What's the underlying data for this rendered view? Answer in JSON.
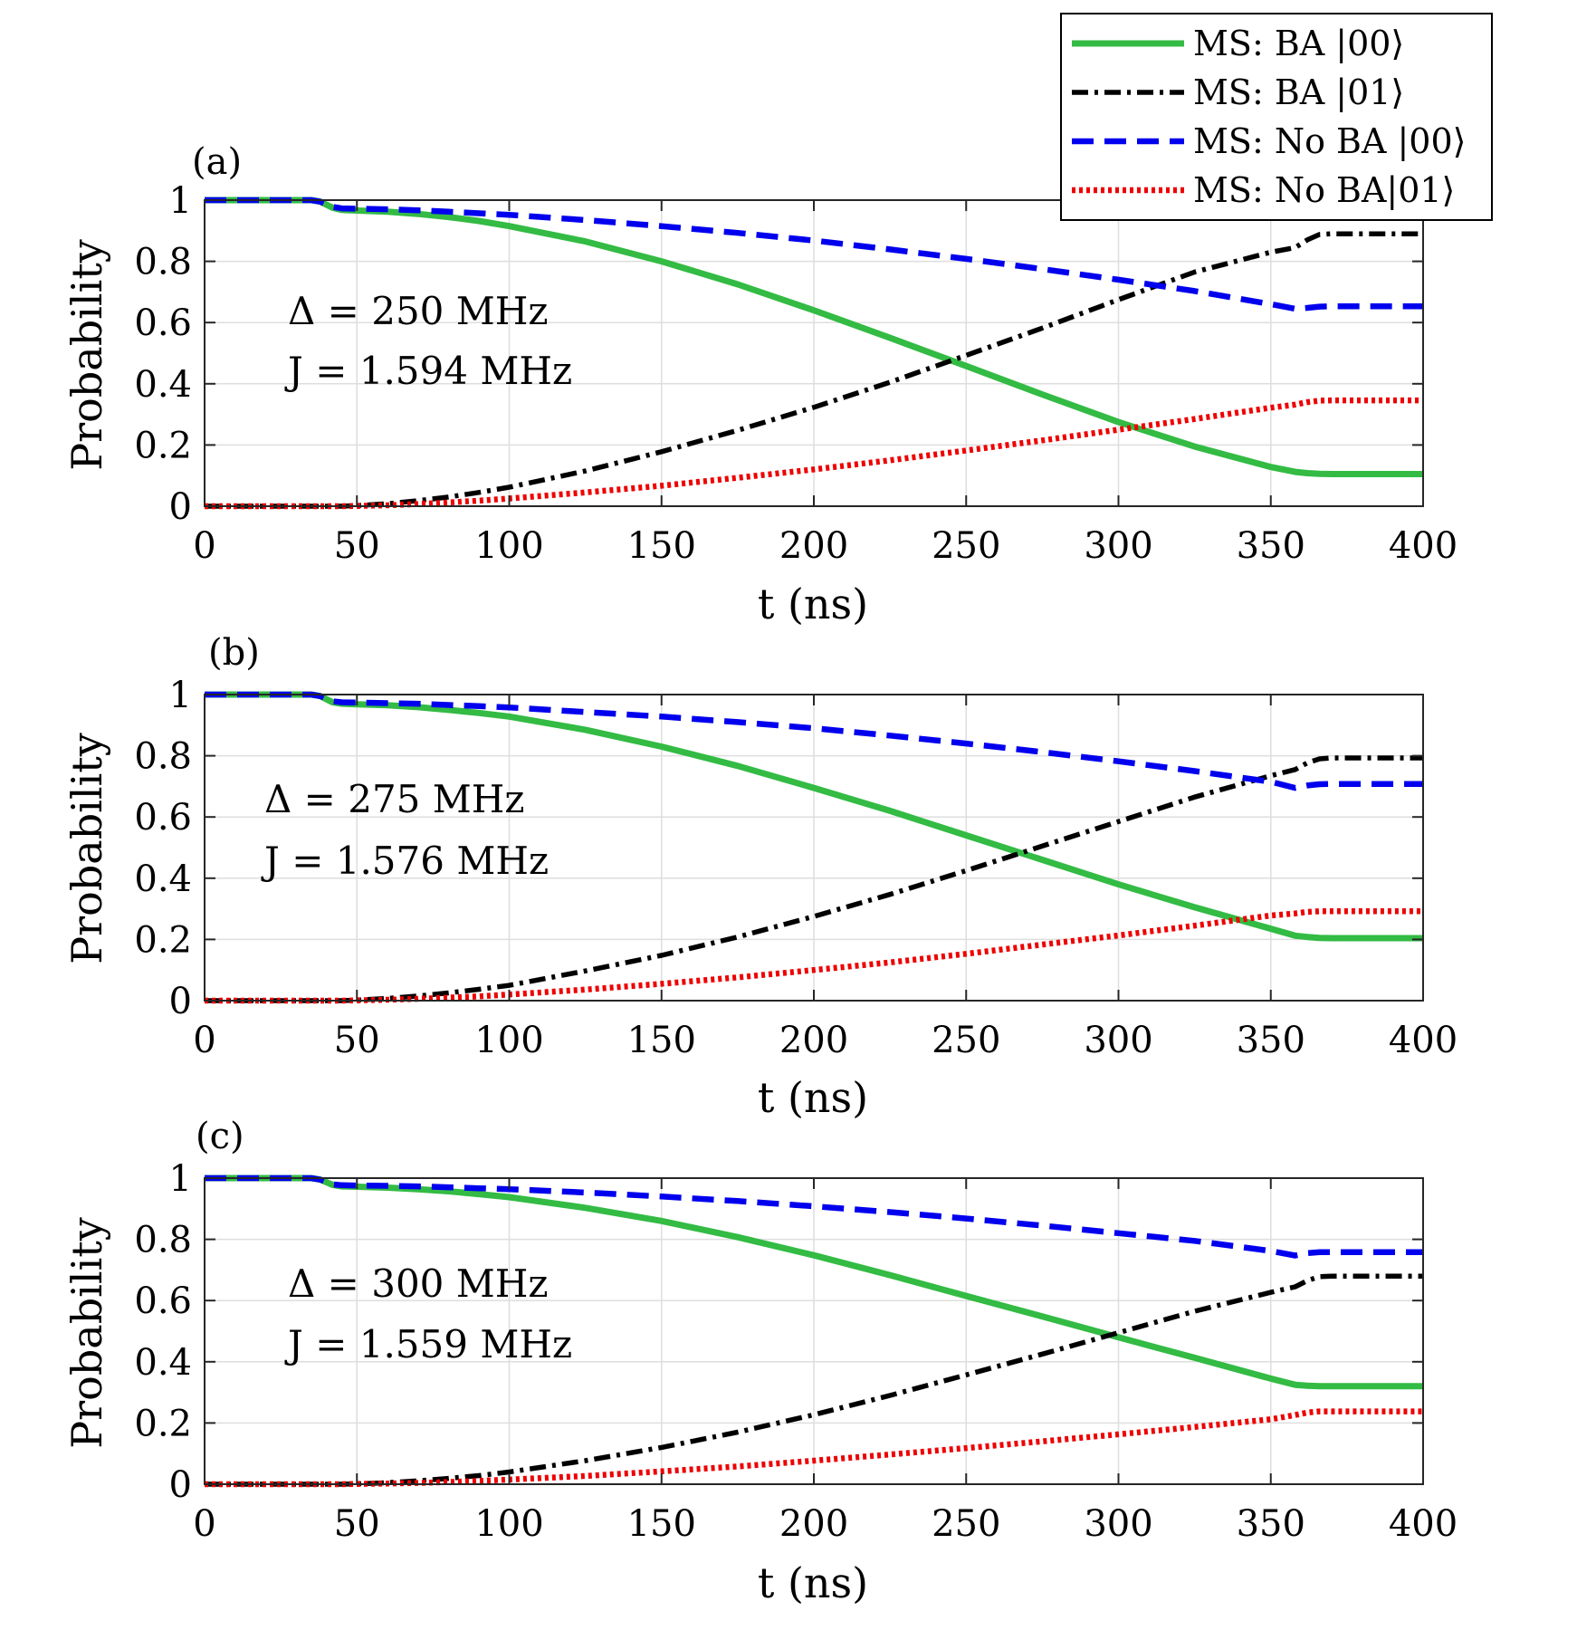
{
  "chart_data": [
    {
      "type": "line",
      "panel_label": "(a)",
      "annotation": [
        "Δ = 250 MHz",
        "J = 1.594 MHz"
      ],
      "xlabel": "t (ns)",
      "ylabel": "Probability",
      "xlim": [
        0,
        400
      ],
      "ylim": [
        0,
        1
      ],
      "xticks": [
        "0",
        "50",
        "100",
        "150",
        "200",
        "250",
        "300",
        "350",
        "400"
      ],
      "yticks": [
        "0",
        "0.2",
        "0.4",
        "0.6",
        "0.8",
        "1"
      ],
      "grid": true,
      "x": [
        0,
        35,
        38,
        42,
        45,
        50,
        60,
        70,
        80,
        90,
        100,
        125,
        150,
        175,
        200,
        225,
        250,
        275,
        300,
        325,
        350,
        358,
        362,
        366,
        370,
        380,
        400
      ],
      "series": [
        {
          "name": "MS: BA |00⟩",
          "values": [
            1.0,
            1.0,
            0.995,
            0.975,
            0.968,
            0.966,
            0.962,
            0.955,
            0.945,
            0.932,
            0.915,
            0.865,
            0.8,
            0.725,
            0.64,
            0.55,
            0.458,
            0.365,
            0.275,
            0.195,
            0.128,
            0.112,
            0.108,
            0.106,
            0.105,
            0.105,
            0.105
          ]
        },
        {
          "name": "MS: BA |01⟩",
          "values": [
            0.0,
            0.0,
            0.0,
            0.0,
            0.0,
            0.002,
            0.008,
            0.018,
            0.03,
            0.045,
            0.062,
            0.115,
            0.178,
            0.248,
            0.323,
            0.405,
            0.493,
            0.582,
            0.675,
            0.765,
            0.83,
            0.845,
            0.87,
            0.888,
            0.89,
            0.89,
            0.89
          ]
        },
        {
          "name": "MS: No BA |00⟩",
          "values": [
            1.0,
            1.0,
            0.995,
            0.978,
            0.973,
            0.972,
            0.97,
            0.967,
            0.962,
            0.957,
            0.952,
            0.935,
            0.915,
            0.893,
            0.868,
            0.839,
            0.808,
            0.775,
            0.74,
            0.703,
            0.66,
            0.645,
            0.648,
            0.652,
            0.653,
            0.653,
            0.653
          ]
        },
        {
          "name": "MS: No BA|01⟩",
          "values": [
            0.0,
            0.0,
            0.0,
            0.0,
            0.0,
            0.001,
            0.003,
            0.007,
            0.012,
            0.018,
            0.025,
            0.045,
            0.067,
            0.093,
            0.12,
            0.15,
            0.182,
            0.215,
            0.25,
            0.285,
            0.322,
            0.332,
            0.34,
            0.345,
            0.346,
            0.346,
            0.346
          ]
        }
      ]
    },
    {
      "type": "line",
      "panel_label": "(b)",
      "annotation": [
        "Δ = 275 MHz",
        "J = 1.576 MHz"
      ],
      "xlabel": "t (ns)",
      "ylabel": "Probability",
      "xlim": [
        0,
        400
      ],
      "ylim": [
        0,
        1
      ],
      "xticks": [
        "0",
        "50",
        "100",
        "150",
        "200",
        "250",
        "300",
        "350",
        "400"
      ],
      "yticks": [
        "0",
        "0.2",
        "0.4",
        "0.6",
        "0.8",
        "1"
      ],
      "grid": true,
      "x": [
        0,
        35,
        38,
        42,
        45,
        50,
        60,
        70,
        80,
        90,
        100,
        125,
        150,
        175,
        200,
        225,
        250,
        275,
        300,
        325,
        350,
        358,
        362,
        366,
        370,
        380,
        400
      ],
      "series": [
        {
          "name": "MS: BA |00⟩",
          "values": [
            1.0,
            1.0,
            0.995,
            0.975,
            0.97,
            0.968,
            0.965,
            0.959,
            0.95,
            0.94,
            0.928,
            0.885,
            0.83,
            0.767,
            0.695,
            0.62,
            0.54,
            0.46,
            0.38,
            0.305,
            0.235,
            0.212,
            0.208,
            0.205,
            0.204,
            0.204,
            0.204
          ]
        },
        {
          "name": "MS: BA |01⟩",
          "values": [
            0.0,
            0.0,
            0.0,
            0.0,
            0.0,
            0.002,
            0.007,
            0.015,
            0.025,
            0.037,
            0.05,
            0.097,
            0.148,
            0.208,
            0.275,
            0.347,
            0.425,
            0.505,
            0.585,
            0.665,
            0.735,
            0.755,
            0.777,
            0.79,
            0.793,
            0.793,
            0.793
          ]
        },
        {
          "name": "MS: No BA |00⟩",
          "values": [
            1.0,
            1.0,
            0.995,
            0.978,
            0.975,
            0.974,
            0.972,
            0.97,
            0.966,
            0.962,
            0.958,
            0.943,
            0.928,
            0.91,
            0.89,
            0.866,
            0.84,
            0.812,
            0.782,
            0.75,
            0.715,
            0.695,
            0.703,
            0.707,
            0.708,
            0.708,
            0.708
          ]
        },
        {
          "name": "MS: No BA|01⟩",
          "values": [
            0.0,
            0.0,
            0.0,
            0.0,
            0.0,
            0.001,
            0.003,
            0.006,
            0.01,
            0.014,
            0.02,
            0.036,
            0.055,
            0.076,
            0.1,
            0.125,
            0.153,
            0.183,
            0.213,
            0.245,
            0.278,
            0.285,
            0.29,
            0.292,
            0.292,
            0.292,
            0.292
          ]
        }
      ]
    },
    {
      "type": "line",
      "panel_label": "(c)",
      "annotation": [
        "Δ = 300 MHz",
        "J = 1.559 MHz"
      ],
      "xlabel": "t (ns)",
      "ylabel": "Probability",
      "xlim": [
        0,
        400
      ],
      "ylim": [
        0,
        1
      ],
      "xticks": [
        "0",
        "50",
        "100",
        "150",
        "200",
        "250",
        "300",
        "350",
        "400"
      ],
      "yticks": [
        "0",
        "0.2",
        "0.4",
        "0.6",
        "0.8",
        "1"
      ],
      "grid": true,
      "x": [
        0,
        35,
        38,
        42,
        45,
        50,
        60,
        70,
        80,
        90,
        100,
        125,
        150,
        175,
        200,
        225,
        250,
        275,
        300,
        325,
        350,
        358,
        362,
        366,
        370,
        380,
        400
      ],
      "series": [
        {
          "name": "MS: BA |00⟩",
          "values": [
            1.0,
            1.0,
            0.995,
            0.978,
            0.973,
            0.972,
            0.969,
            0.964,
            0.957,
            0.948,
            0.938,
            0.903,
            0.86,
            0.807,
            0.748,
            0.683,
            0.615,
            0.548,
            0.48,
            0.413,
            0.345,
            0.325,
            0.322,
            0.32,
            0.32,
            0.32,
            0.32
          ]
        },
        {
          "name": "MS: BA |01⟩",
          "values": [
            0.0,
            0.0,
            0.0,
            0.0,
            0.0,
            0.001,
            0.005,
            0.011,
            0.019,
            0.028,
            0.04,
            0.077,
            0.12,
            0.17,
            0.227,
            0.29,
            0.357,
            0.425,
            0.495,
            0.565,
            0.627,
            0.645,
            0.665,
            0.678,
            0.68,
            0.68,
            0.68
          ]
        },
        {
          "name": "MS: No BA |00⟩",
          "values": [
            1.0,
            1.0,
            0.995,
            0.98,
            0.977,
            0.976,
            0.975,
            0.973,
            0.97,
            0.967,
            0.964,
            0.953,
            0.94,
            0.925,
            0.908,
            0.889,
            0.868,
            0.845,
            0.82,
            0.795,
            0.762,
            0.747,
            0.755,
            0.758,
            0.758,
            0.758,
            0.758
          ]
        },
        {
          "name": "MS: No BA|01⟩",
          "values": [
            0.0,
            0.0,
            0.0,
            0.0,
            0.0,
            0.001,
            0.002,
            0.004,
            0.007,
            0.011,
            0.015,
            0.027,
            0.042,
            0.058,
            0.077,
            0.097,
            0.118,
            0.14,
            0.163,
            0.187,
            0.212,
            0.226,
            0.234,
            0.238,
            0.238,
            0.238,
            0.238
          ]
        }
      ]
    }
  ],
  "legend": {
    "placement": "top-right",
    "entries": [
      {
        "label": "MS: BA |00⟩",
        "color": "#33bb44",
        "style": "solid"
      },
      {
        "label": "MS: BA |01⟩",
        "color": "#000000",
        "style": "dashdot"
      },
      {
        "label": "MS: No BA |00⟩",
        "color": "#0000ee",
        "style": "dashed"
      },
      {
        "label": "MS: No BA|01⟩",
        "color": "#ee0000",
        "style": "dotted"
      }
    ]
  }
}
